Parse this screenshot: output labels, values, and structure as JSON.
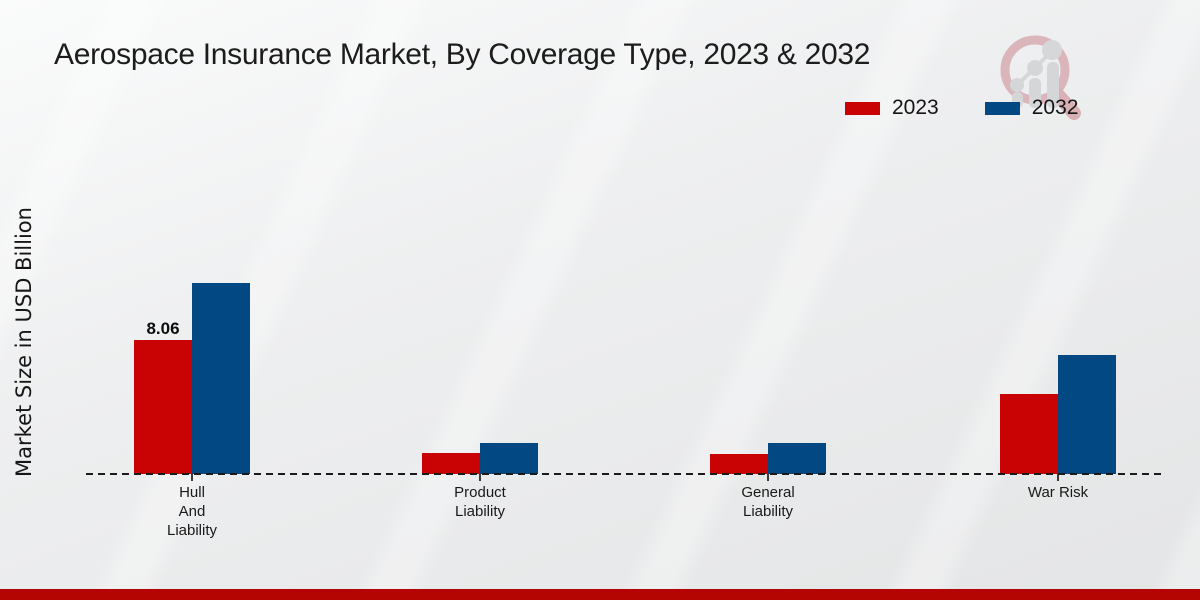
{
  "header": {
    "title": "Aerospace Insurance Market, By Coverage Type, 2023 & 2032"
  },
  "watermark": {
    "icon": "magnifier-bar-chart-logo",
    "ring_color": "#cb8891",
    "bars_color": "#c2c4c6"
  },
  "legend": [
    {
      "label": "2023",
      "color": "#c90303"
    },
    {
      "label": "2032",
      "color": "#024883"
    }
  ],
  "y_axis": {
    "label": "Market Size in USD Billion"
  },
  "chart_data": {
    "type": "bar",
    "title": "Aerospace Insurance Market, By Coverage Type, 2023 & 2032",
    "ylabel": "Market Size in USD Billion",
    "xlabel": "",
    "categories": [
      "Hull And Liability",
      "Product Liability",
      "General Liability",
      "War Risk"
    ],
    "category_lines": [
      [
        "Hull",
        "And",
        "Liability"
      ],
      [
        "Product",
        "Liability"
      ],
      [
        "General",
        "Liability"
      ],
      [
        "War Risk"
      ]
    ],
    "series": [
      {
        "name": "2023",
        "color": "#c90303",
        "values": [
          8.06,
          1.25,
          1.2,
          4.8
        ]
      },
      {
        "name": "2032",
        "color": "#024883",
        "values": [
          11.5,
          1.86,
          1.85,
          7.15
        ]
      }
    ],
    "annotations": [
      {
        "series": "2023",
        "category": "Hull And Liability",
        "text": "8.06"
      }
    ],
    "ylim": [
      0,
      12
    ],
    "grid": false,
    "baseline_style": "dashed",
    "legend_position": "top-right"
  },
  "footer": {
    "bar_color": "#b50503"
  }
}
